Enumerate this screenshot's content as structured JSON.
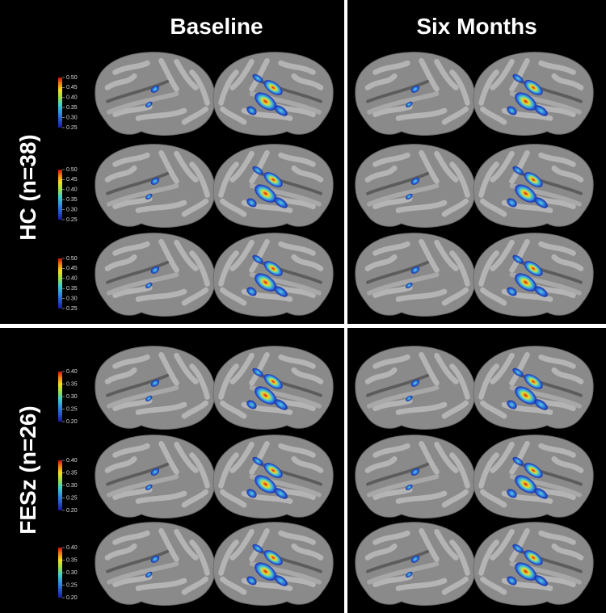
{
  "columns": [
    "Baseline",
    "Six Months"
  ],
  "groups": [
    {
      "label": "HC (n=38)",
      "colorbars": [
        {
          "ticks": [
            "0.50",
            "0.45",
            "0.40",
            "0.35",
            "0.30",
            "0.25"
          ]
        },
        {
          "ticks": [
            "0.50",
            "0.45",
            "0.40",
            "0.35",
            "0.30",
            "0.25"
          ]
        },
        {
          "ticks": [
            "0.50",
            "0.45",
            "0.40",
            "0.35",
            "0.30",
            "0.25"
          ]
        }
      ]
    },
    {
      "label": "FESz (n=26)",
      "colorbars": [
        {
          "ticks": [
            "0.40",
            "0.35",
            "0.30",
            "0.25",
            "0.20"
          ]
        },
        {
          "ticks": [
            "0.40",
            "0.35",
            "0.30",
            "0.25",
            "0.20"
          ]
        },
        {
          "ticks": [
            "0.40",
            "0.35",
            "0.30",
            "0.25",
            "0.20"
          ]
        }
      ]
    }
  ]
}
